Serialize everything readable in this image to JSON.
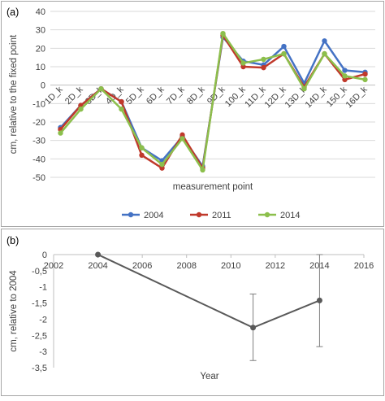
{
  "panels": {
    "a_tag": "(a)",
    "b_tag": "(b)"
  },
  "chart_data": [
    {
      "type": "line",
      "ylabel": "cm, relative to the fixed point",
      "xlabel": "measurement point",
      "ylim": [
        -50,
        40
      ],
      "yticks": [
        40,
        30,
        20,
        10,
        0,
        -10,
        -20,
        -30,
        -40,
        -50
      ],
      "categories": [
        "1D_k",
        "2D_k",
        "3D_k",
        "4D_k",
        "5D_k",
        "6D_k",
        "7D_k",
        "8D_k",
        "9D_k",
        "10D_k",
        "11D_k",
        "12D_k",
        "13D_k",
        "14D_k",
        "15D_k",
        "16D_k"
      ],
      "category_labels": [
        "1D_k",
        "2D_k",
        "3D_k",
        "4D_k",
        "5D_k",
        "6D_k",
        "7D_k",
        "8D_k",
        "9D_k",
        "100_k",
        "11D_k",
        "12D_k",
        "13D_k",
        "14D_k",
        "150_k",
        "16D_k"
      ],
      "legend_position": "bottom",
      "grid": true,
      "series": [
        {
          "name": "2004",
          "color": "#4472c4",
          "values": [
            -23,
            -11,
            -2,
            -9,
            -34,
            -41,
            -28,
            -44,
            26,
            13,
            11,
            21,
            1,
            24,
            8,
            7
          ]
        },
        {
          "name": "2011",
          "color": "#c0392b",
          "values": [
            -24,
            -11,
            -2,
            -9,
            -38,
            -45,
            -27,
            -45,
            27,
            10,
            9.5,
            17,
            -1,
            17,
            3,
            6
          ]
        },
        {
          "name": "2014",
          "color": "#8cbf4c",
          "values": [
            -26,
            -13,
            -2,
            -13,
            -34,
            -43,
            -29,
            -46,
            28,
            12,
            14,
            17,
            -2,
            17,
            5,
            3
          ]
        }
      ]
    },
    {
      "type": "scatter",
      "ylabel": "cm, relative to 2004",
      "xlabel": "Year",
      "xlim": [
        2002,
        2016
      ],
      "ylim": [
        -3.5,
        0
      ],
      "xticks": [
        2002,
        2004,
        2006,
        2008,
        2010,
        2012,
        2014,
        2016
      ],
      "yticks": [
        "0",
        "-0,5",
        "-1",
        "-1,5",
        "-2",
        "-2,5",
        "-3",
        "-3,5"
      ],
      "ytick_values": [
        0,
        -0.5,
        -1,
        -1.5,
        -2,
        -2.5,
        -3,
        -3.5
      ],
      "grid": false,
      "series": [
        {
          "color": "#595959",
          "points": [
            {
              "x": 2004,
              "y": 0
            },
            {
              "x": 2011,
              "y": -2.26,
              "err_low": -3.28,
              "err_high": -1.22
            },
            {
              "x": 2014,
              "y": -1.42,
              "err_low": -2.85,
              "err_high": 0
            }
          ]
        }
      ]
    }
  ]
}
